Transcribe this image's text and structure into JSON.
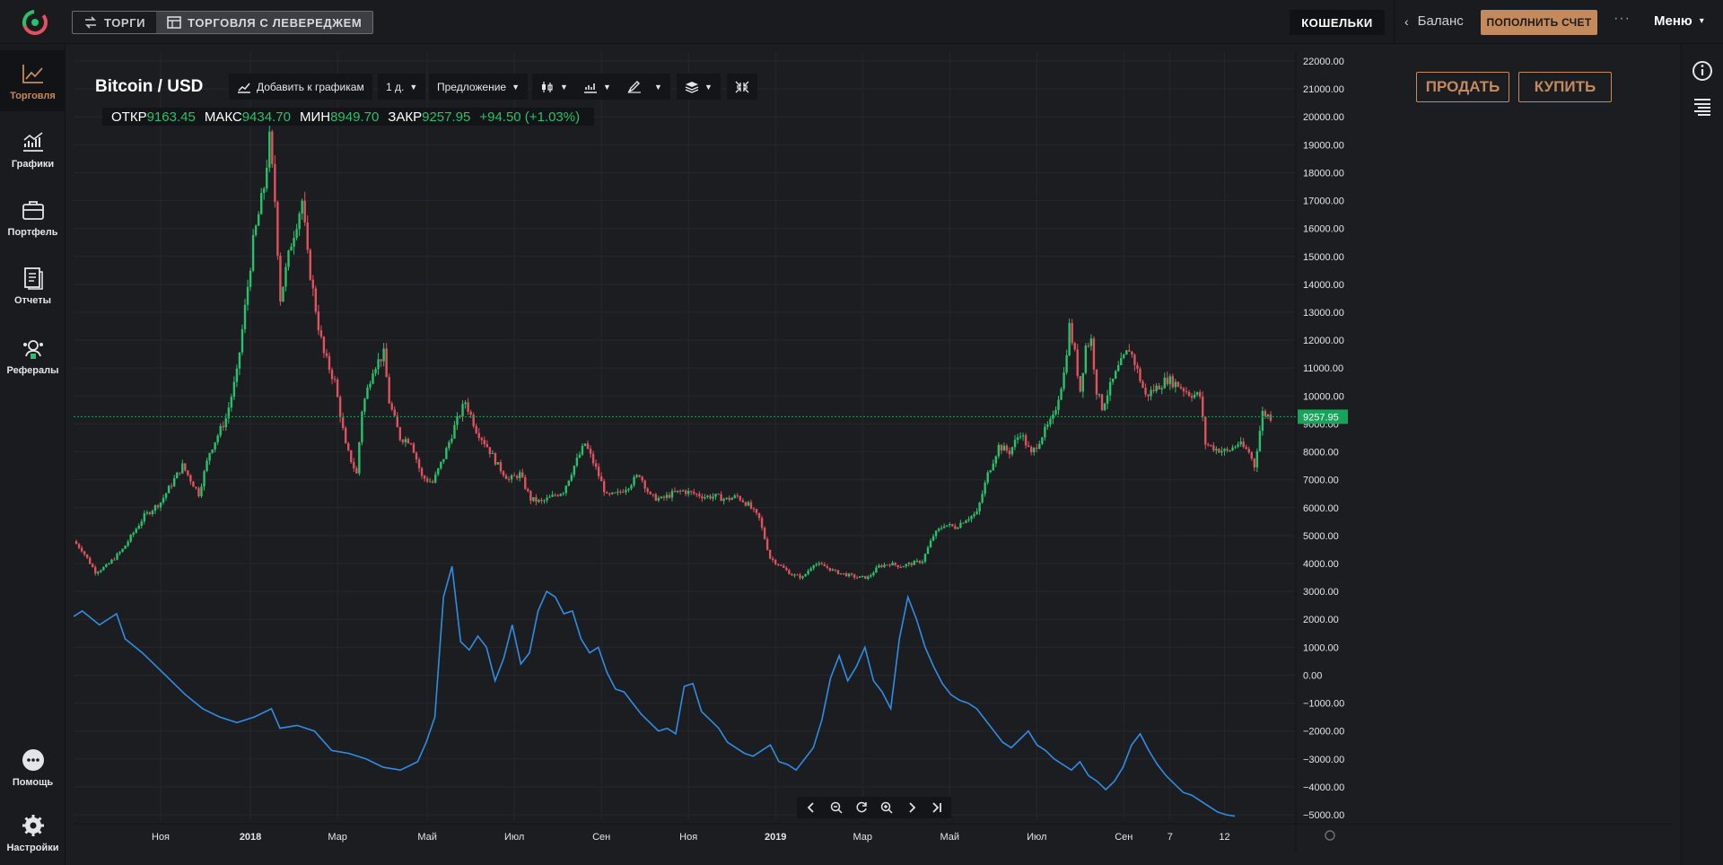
{
  "header": {
    "modes": [
      {
        "label": "ТОРГИ",
        "icon": "swap-icon"
      },
      {
        "label": "ТОРГОВЛЯ С ЛЕВЕРЕДЖЕМ",
        "icon": "window-icon"
      }
    ],
    "wallets_label": "КОШЕЛЬКИ",
    "balance_label": "Баланс",
    "topup_label": "ПОПОЛНИТЬ СЧЕТ",
    "more_label": "···",
    "menu_label": "Меню"
  },
  "sidebar": {
    "items": [
      {
        "label": "Торговля",
        "icon": "trading-chart-icon"
      },
      {
        "label": "Графики",
        "icon": "charts-icon"
      },
      {
        "label": "Портфель",
        "icon": "portfolio-icon"
      },
      {
        "label": "Отчеты",
        "icon": "reports-icon"
      },
      {
        "label": "Рефералы",
        "icon": "referrals-icon"
      }
    ],
    "bottom": [
      {
        "label": "Помощь",
        "icon": "help-chat-icon"
      },
      {
        "label": "Настройки",
        "icon": "settings-gear-icon"
      }
    ]
  },
  "toolbar": {
    "symbol": "Bitcoin / USD",
    "add_to_charts": "Добавить к графикам",
    "interval": "1 д.",
    "price_type": "Предложение"
  },
  "ohlc": {
    "open_label": "ОТКР",
    "open": "9163.45",
    "high_label": "МАКС",
    "high": "9434.70",
    "low_label": "МИН",
    "low": "8949.70",
    "close_label": "ЗАКР",
    "close": "9257.95",
    "change": "+94.50 (+1.03%)"
  },
  "actions": {
    "sell": "ПРОДАТЬ",
    "buy": "КУПИТЬ"
  },
  "colors": {
    "accent": "#c48a5c",
    "up": "#27c26a",
    "down": "#e0525d",
    "line": "#2f8de4",
    "last_price": "#19a35a"
  },
  "chart_data": {
    "type": "line",
    "last_price_label": "9257.95",
    "y_ticks": [
      "22000.00",
      "21000.00",
      "20000.00",
      "19000.00",
      "18000.00",
      "17000.00",
      "16000.00",
      "15000.00",
      "14000.00",
      "13000.00",
      "12000.00",
      "11000.00",
      "10000.00",
      "9000.00",
      "8000.00",
      "7000.00",
      "6000.00",
      "5000.00",
      "4000.00",
      "3000.00",
      "2000.00",
      "1000.00",
      "0.00",
      "−1000.00",
      "−2000.00",
      "−3000.00",
      "−4000.00",
      "−5000.00"
    ],
    "x_ticks": [
      "Ноя",
      "2018",
      "Мар",
      "Май",
      "Июл",
      "Сен",
      "Ноя",
      "2019",
      "Мар",
      "Май",
      "Июл",
      "Сен",
      "7",
      "12"
    ],
    "ylim": [
      -5000,
      22000
    ],
    "price_series": {
      "name": "",
      "points": [
        [
          0,
          4800
        ],
        [
          3,
          4500
        ],
        [
          8,
          3700
        ],
        [
          12,
          3900
        ],
        [
          18,
          4500
        ],
        [
          26,
          5700
        ],
        [
          32,
          6200
        ],
        [
          40,
          7500
        ],
        [
          46,
          6500
        ],
        [
          50,
          8000
        ],
        [
          56,
          9200
        ],
        [
          60,
          10800
        ],
        [
          66,
          15500
        ],
        [
          70,
          17500
        ],
        [
          72,
          19200
        ],
        [
          74,
          17000
        ],
        [
          76,
          13500
        ],
        [
          80,
          15500
        ],
        [
          84,
          17000
        ],
        [
          86,
          15000
        ],
        [
          90,
          12500
        ],
        [
          92,
          11500
        ],
        [
          96,
          10500
        ],
        [
          100,
          8200
        ],
        [
          104,
          7200
        ],
        [
          106,
          9500
        ],
        [
          110,
          11000
        ],
        [
          114,
          11500
        ],
        [
          116,
          9800
        ],
        [
          120,
          8500
        ],
        [
          124,
          8400
        ],
        [
          128,
          7100
        ],
        [
          132,
          6900
        ],
        [
          136,
          7800
        ],
        [
          140,
          8900
        ],
        [
          144,
          9800
        ],
        [
          148,
          8800
        ],
        [
          152,
          8200
        ],
        [
          156,
          7500
        ],
        [
          160,
          7000
        ],
        [
          164,
          7200
        ],
        [
          168,
          6300
        ],
        [
          172,
          6200
        ],
        [
          176,
          6400
        ],
        [
          180,
          6600
        ],
        [
          184,
          7500
        ],
        [
          188,
          8300
        ],
        [
          192,
          7400
        ],
        [
          196,
          6400
        ],
        [
          200,
          6500
        ],
        [
          204,
          6800
        ],
        [
          208,
          7200
        ],
        [
          212,
          6400
        ],
        [
          216,
          6300
        ],
        [
          220,
          6500
        ],
        [
          224,
          6600
        ],
        [
          228,
          6500
        ],
        [
          232,
          6400
        ],
        [
          236,
          6400
        ],
        [
          240,
          6300
        ],
        [
          244,
          6400
        ],
        [
          248,
          6100
        ],
        [
          252,
          5600
        ],
        [
          256,
          4200
        ],
        [
          260,
          3900
        ],
        [
          264,
          3600
        ],
        [
          268,
          3500
        ],
        [
          272,
          4000
        ],
        [
          276,
          3900
        ],
        [
          280,
          3700
        ],
        [
          284,
          3600
        ],
        [
          288,
          3500
        ],
        [
          292,
          3500
        ],
        [
          296,
          3900
        ],
        [
          300,
          4000
        ],
        [
          304,
          3900
        ],
        [
          308,
          4000
        ],
        [
          312,
          4100
        ],
        [
          316,
          5000
        ],
        [
          320,
          5400
        ],
        [
          324,
          5300
        ],
        [
          328,
          5600
        ],
        [
          332,
          5800
        ],
        [
          336,
          7200
        ],
        [
          340,
          8200
        ],
        [
          344,
          8000
        ],
        [
          348,
          8700
        ],
        [
          352,
          7900
        ],
        [
          356,
          8600
        ],
        [
          360,
          9200
        ],
        [
          364,
          10800
        ],
        [
          366,
          12500
        ],
        [
          368,
          11500
        ],
        [
          370,
          10200
        ],
        [
          372,
          11800
        ],
        [
          374,
          12000
        ],
        [
          376,
          10200
        ],
        [
          378,
          9600
        ],
        [
          380,
          10100
        ],
        [
          384,
          11000
        ],
        [
          388,
          11700
        ],
        [
          390,
          11200
        ],
        [
          394,
          10000
        ],
        [
          398,
          10300
        ],
        [
          402,
          10600
        ],
        [
          406,
          10400
        ],
        [
          410,
          10100
        ],
        [
          414,
          10000
        ],
        [
          416,
          8300
        ],
        [
          420,
          8100
        ],
        [
          424,
          8000
        ],
        [
          428,
          8300
        ],
        [
          432,
          8000
        ],
        [
          434,
          7500
        ],
        [
          437,
          9400
        ],
        [
          440,
          9250
        ]
      ]
    },
    "indicator_series": {
      "name": "",
      "points": [
        [
          0,
          2100
        ],
        [
          2,
          2300
        ],
        [
          6,
          1800
        ],
        [
          10,
          2200
        ],
        [
          12,
          1300
        ],
        [
          16,
          800
        ],
        [
          20,
          200
        ],
        [
          26,
          -700
        ],
        [
          30,
          -1200
        ],
        [
          34,
          -1500
        ],
        [
          38,
          -1700
        ],
        [
          42,
          -1500
        ],
        [
          46,
          -1200
        ],
        [
          48,
          -1900
        ],
        [
          52,
          -1800
        ],
        [
          56,
          -2000
        ],
        [
          60,
          -2700
        ],
        [
          64,
          -2800
        ],
        [
          68,
          -3000
        ],
        [
          72,
          -3300
        ],
        [
          76,
          -3400
        ],
        [
          80,
          -3100
        ],
        [
          82,
          -2400
        ],
        [
          84,
          -1500
        ],
        [
          86,
          2800
        ],
        [
          88,
          3900
        ],
        [
          90,
          1200
        ],
        [
          92,
          900
        ],
        [
          94,
          1400
        ],
        [
          96,
          1000
        ],
        [
          98,
          -200
        ],
        [
          100,
          600
        ],
        [
          102,
          1800
        ],
        [
          104,
          400
        ],
        [
          106,
          800
        ],
        [
          108,
          2300
        ],
        [
          110,
          3000
        ],
        [
          112,
          2800
        ],
        [
          114,
          2200
        ],
        [
          116,
          2300
        ],
        [
          118,
          1300
        ],
        [
          120,
          800
        ],
        [
          122,
          1000
        ],
        [
          124,
          100
        ],
        [
          126,
          -500
        ],
        [
          128,
          -600
        ],
        [
          130,
          -1000
        ],
        [
          132,
          -1400
        ],
        [
          134,
          -1700
        ],
        [
          136,
          -2000
        ],
        [
          138,
          -1900
        ],
        [
          140,
          -2100
        ],
        [
          142,
          -400
        ],
        [
          144,
          -300
        ],
        [
          146,
          -1300
        ],
        [
          148,
          -1600
        ],
        [
          150,
          -1900
        ],
        [
          152,
          -2400
        ],
        [
          154,
          -2600
        ],
        [
          156,
          -2800
        ],
        [
          158,
          -2900
        ],
        [
          160,
          -2700
        ],
        [
          162,
          -2500
        ],
        [
          164,
          -3100
        ],
        [
          166,
          -3200
        ],
        [
          168,
          -3400
        ],
        [
          170,
          -3000
        ],
        [
          172,
          -2600
        ],
        [
          174,
          -1600
        ],
        [
          176,
          -100
        ],
        [
          178,
          700
        ],
        [
          180,
          -200
        ],
        [
          182,
          300
        ],
        [
          184,
          1000
        ],
        [
          186,
          -200
        ],
        [
          188,
          -600
        ],
        [
          190,
          -1200
        ],
        [
          192,
          1300
        ],
        [
          194,
          2800
        ],
        [
          196,
          2000
        ],
        [
          198,
          1000
        ],
        [
          200,
          300
        ],
        [
          202,
          -300
        ],
        [
          204,
          -700
        ],
        [
          206,
          -900
        ],
        [
          208,
          -1000
        ],
        [
          210,
          -1200
        ],
        [
          212,
          -1600
        ],
        [
          214,
          -2000
        ],
        [
          216,
          -2400
        ],
        [
          218,
          -2600
        ],
        [
          220,
          -2300
        ],
        [
          222,
          -2000
        ],
        [
          224,
          -2500
        ],
        [
          226,
          -2700
        ],
        [
          228,
          -3000
        ],
        [
          230,
          -3200
        ],
        [
          232,
          -3400
        ],
        [
          234,
          -3100
        ],
        [
          236,
          -3600
        ],
        [
          238,
          -3800
        ],
        [
          240,
          -4100
        ],
        [
          242,
          -3800
        ],
        [
          244,
          -3300
        ],
        [
          246,
          -2500
        ],
        [
          248,
          -2100
        ],
        [
          250,
          -2700
        ],
        [
          252,
          -3200
        ],
        [
          254,
          -3600
        ],
        [
          256,
          -3900
        ],
        [
          258,
          -4200
        ],
        [
          260,
          -4300
        ],
        [
          262,
          -4500
        ],
        [
          264,
          -4700
        ],
        [
          266,
          -4900
        ],
        [
          268,
          -5000
        ],
        [
          270,
          -5050
        ]
      ]
    },
    "grid": true
  },
  "navbar": {
    "buttons": [
      "prev-icon",
      "zoom-out-icon",
      "reset-icon",
      "zoom-in-icon",
      "next-icon",
      "end-icon"
    ]
  }
}
